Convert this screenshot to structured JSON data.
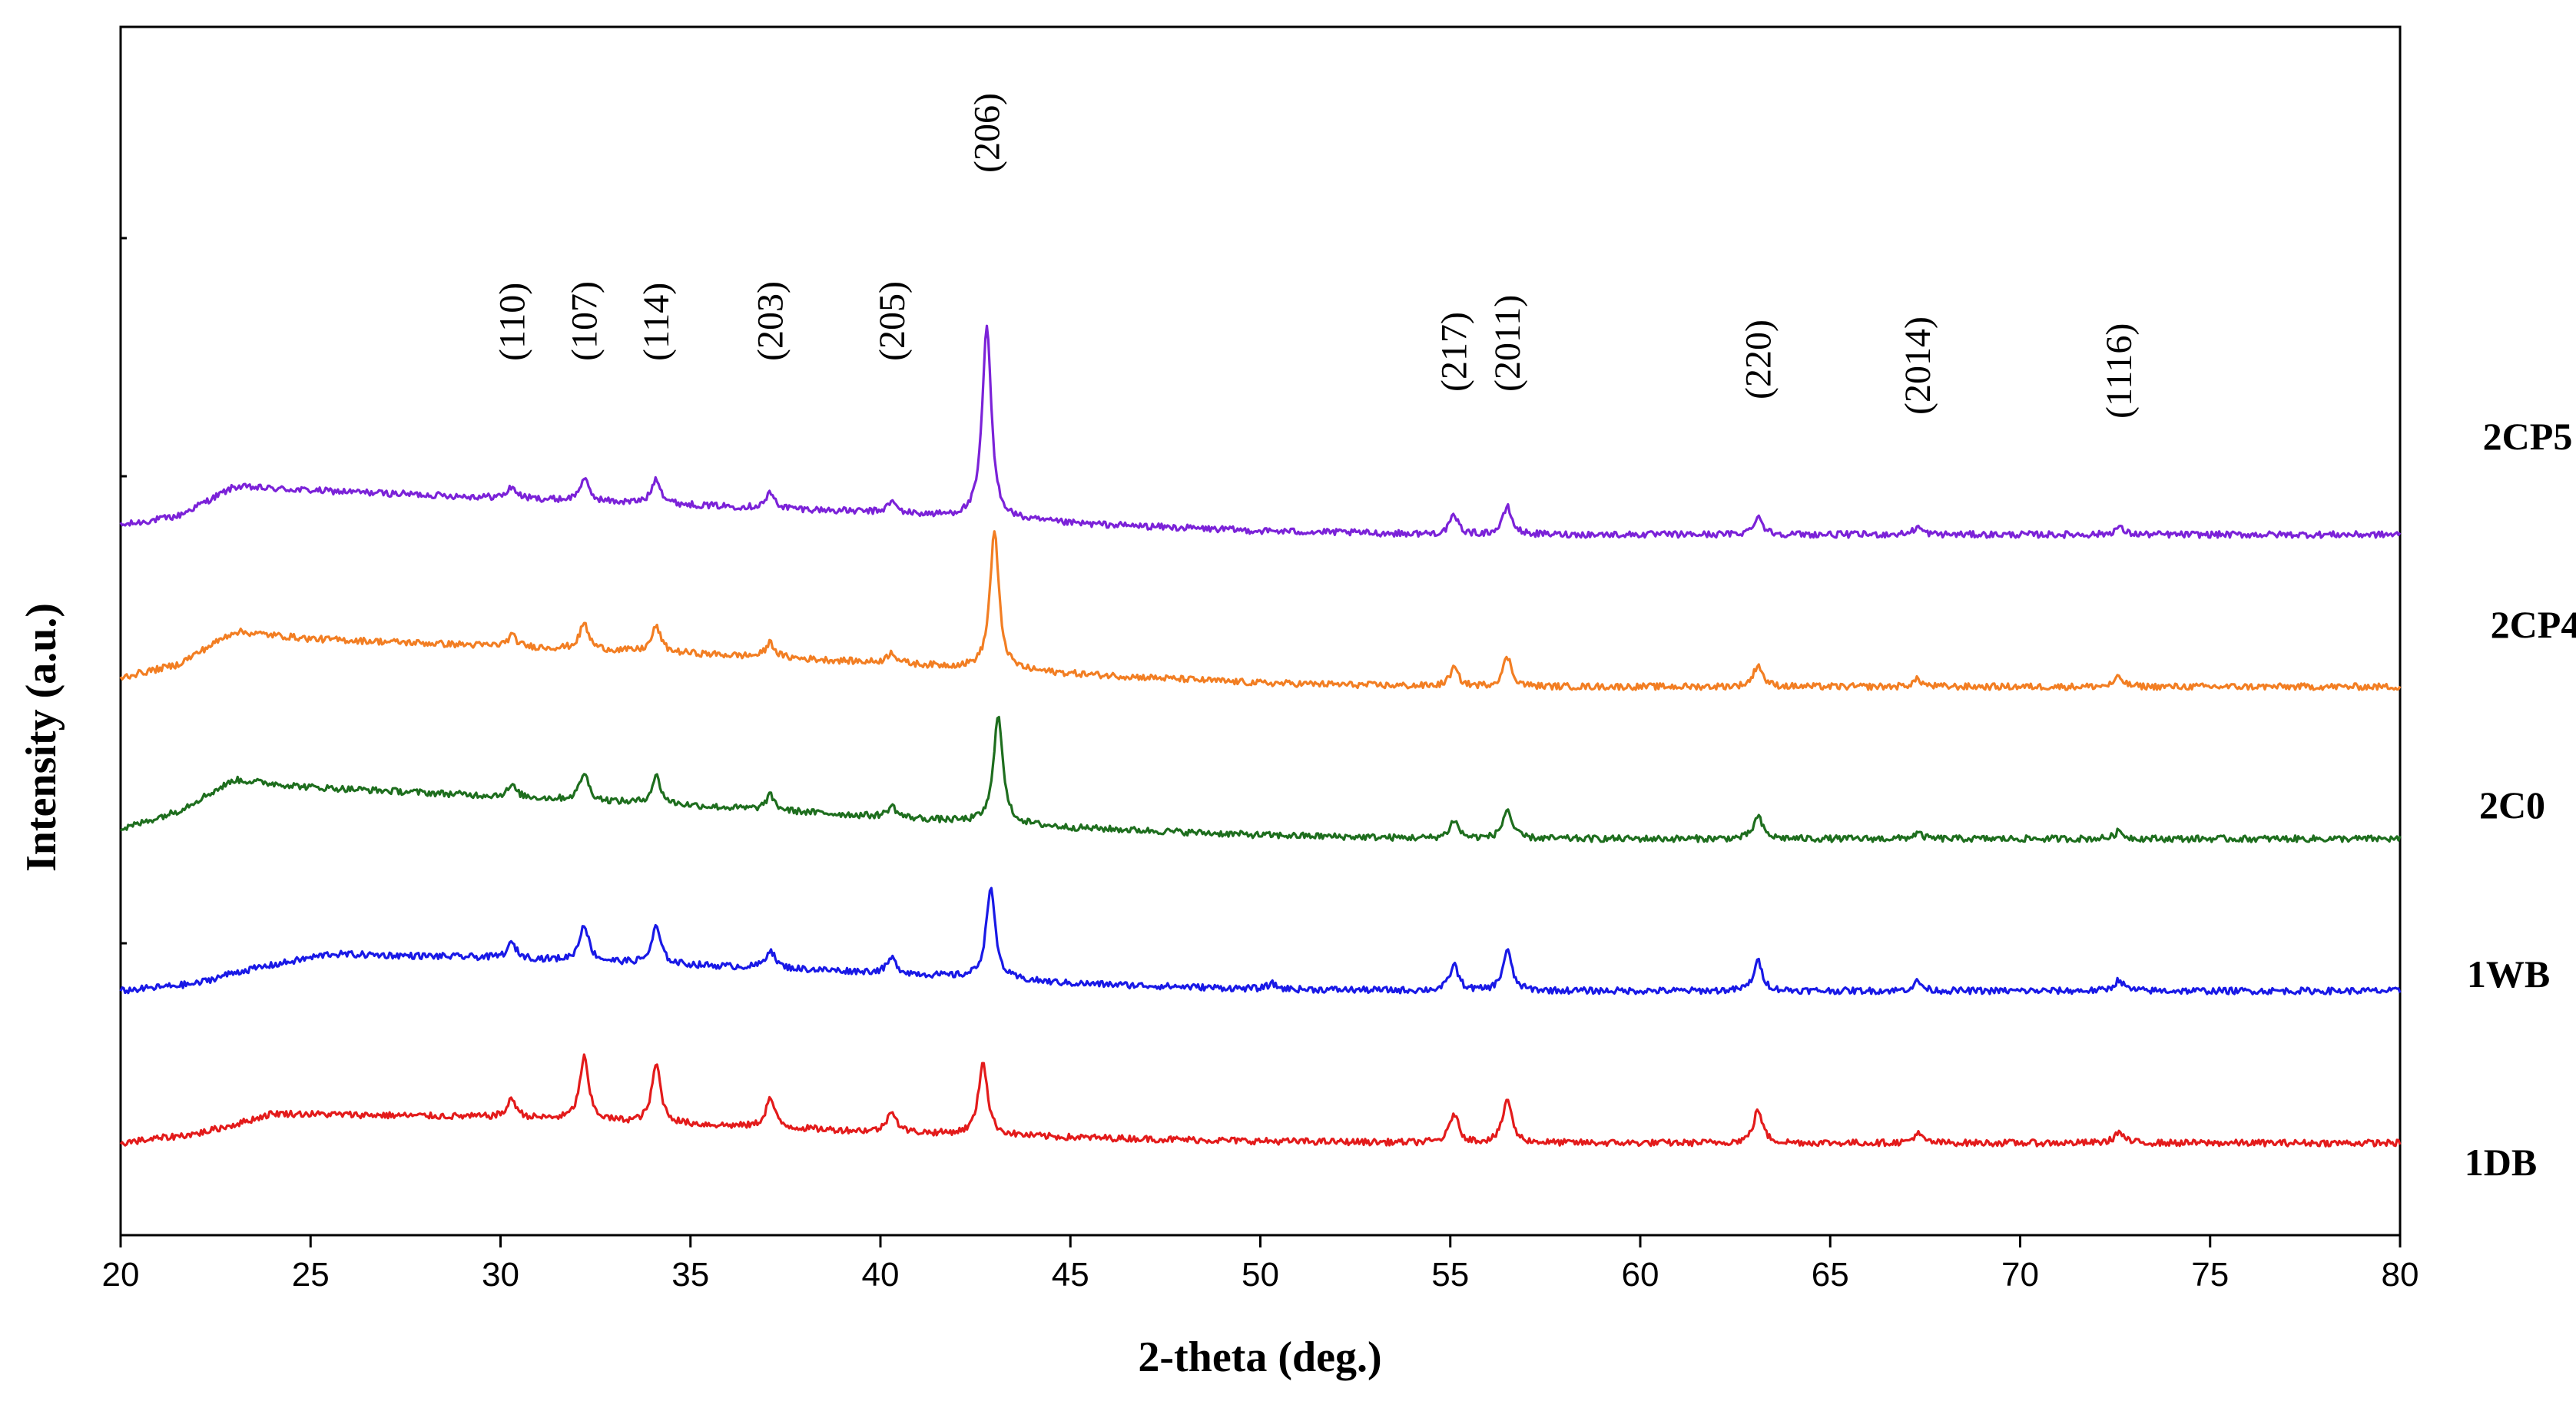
{
  "chart_data": {
    "type": "line",
    "title": "",
    "xlabel": "2-theta (deg.)",
    "ylabel": "Intensity (a.u.)",
    "xlim": [
      20,
      80
    ],
    "xticks": [
      20,
      25,
      30,
      35,
      40,
      45,
      50,
      55,
      60,
      65,
      70,
      75,
      80
    ],
    "grid": false,
    "legend": "right-side labels",
    "peaks": [
      {
        "label": "(110)",
        "x": 30.3
      },
      {
        "label": "(107)",
        "x": 32.2
      },
      {
        "label": "(114)",
        "x": 34.1
      },
      {
        "label": "(203)",
        "x": 37.1
      },
      {
        "label": "(205)",
        "x": 40.3
      },
      {
        "label": "(206)",
        "x": 42.8
      },
      {
        "label": "(217)",
        "x": 55.1
      },
      {
        "label": "(2011)",
        "x": 56.5
      },
      {
        "label": "(220)",
        "x": 63.1
      },
      {
        "label": "(2014)",
        "x": 67.3
      },
      {
        "label": "(1116)",
        "x": 72.6
      }
    ],
    "series": [
      {
        "name": "2CP5",
        "color": "#7B22D8",
        "offset": 4.0,
        "baseline": [
          [
            20,
            0.05
          ],
          [
            21.5,
            0.1
          ],
          [
            23,
            0.26
          ],
          [
            25,
            0.24
          ],
          [
            30,
            0.2
          ],
          [
            35,
            0.16
          ],
          [
            40,
            0.12
          ],
          [
            45,
            0.06
          ],
          [
            50,
            0.02
          ],
          [
            55,
            0.0
          ],
          [
            60,
            0.0
          ],
          [
            65,
            0.0
          ],
          [
            70,
            0.0
          ],
          [
            80,
            0.0
          ]
        ],
        "peaks": [
          [
            30.3,
            0.06
          ],
          [
            32.2,
            0.12
          ],
          [
            34.1,
            0.14
          ],
          [
            37.1,
            0.08
          ],
          [
            40.3,
            0.06
          ],
          [
            42.8,
            1.05
          ],
          [
            55.1,
            0.1
          ],
          [
            56.5,
            0.15
          ],
          [
            63.1,
            0.1
          ],
          [
            67.3,
            0.04
          ],
          [
            72.6,
            0.04
          ]
        ]
      },
      {
        "name": "2CP4",
        "color": "#F27E23",
        "offset": 3.0,
        "baseline": [
          [
            20,
            0.05
          ],
          [
            21.5,
            0.12
          ],
          [
            23,
            0.3
          ],
          [
            25,
            0.26
          ],
          [
            30,
            0.22
          ],
          [
            35,
            0.18
          ],
          [
            40,
            0.13
          ],
          [
            45,
            0.07
          ],
          [
            50,
            0.02
          ],
          [
            55,
            0.0
          ],
          [
            60,
            0.0
          ],
          [
            65,
            0.0
          ],
          [
            70,
            0.0
          ],
          [
            80,
            0.0
          ]
        ],
        "peaks": [
          [
            30.3,
            0.06
          ],
          [
            32.2,
            0.14
          ],
          [
            34.1,
            0.14
          ],
          [
            37.1,
            0.08
          ],
          [
            40.3,
            0.06
          ],
          [
            43.0,
            0.75
          ],
          [
            55.1,
            0.1
          ],
          [
            56.5,
            0.16
          ],
          [
            63.1,
            0.12
          ],
          [
            67.3,
            0.04
          ],
          [
            72.6,
            0.05
          ]
        ]
      },
      {
        "name": "2C0",
        "color": "#1E6E1E",
        "offset": 2.0,
        "baseline": [
          [
            20,
            0.05
          ],
          [
            21.5,
            0.15
          ],
          [
            23,
            0.32
          ],
          [
            25,
            0.28
          ],
          [
            30,
            0.23
          ],
          [
            35,
            0.18
          ],
          [
            40,
            0.12
          ],
          [
            45,
            0.06
          ],
          [
            50,
            0.02
          ],
          [
            55,
            0.0
          ],
          [
            60,
            0.0
          ],
          [
            65,
            0.0
          ],
          [
            70,
            0.0
          ],
          [
            80,
            0.0
          ]
        ],
        "peaks": [
          [
            30.3,
            0.06
          ],
          [
            32.2,
            0.15
          ],
          [
            34.1,
            0.15
          ],
          [
            37.1,
            0.08
          ],
          [
            40.3,
            0.06
          ],
          [
            43.1,
            0.6
          ],
          [
            55.1,
            0.1
          ],
          [
            56.5,
            0.16
          ],
          [
            63.1,
            0.12
          ],
          [
            67.3,
            0.03
          ],
          [
            72.6,
            0.04
          ]
        ]
      },
      {
        "name": "1WB",
        "color": "#1919E6",
        "offset": 1.0,
        "baseline": [
          [
            20,
            0.0
          ],
          [
            22,
            0.04
          ],
          [
            23,
            0.1
          ],
          [
            25.5,
            0.2
          ],
          [
            30,
            0.18
          ],
          [
            35,
            0.14
          ],
          [
            40,
            0.1
          ],
          [
            45,
            0.04
          ],
          [
            50,
            0.01
          ],
          [
            55,
            0.0
          ],
          [
            60,
            0.0
          ],
          [
            65,
            0.0
          ],
          [
            70,
            0.0
          ],
          [
            80,
            0.0
          ]
        ],
        "peaks": [
          [
            30.3,
            0.08
          ],
          [
            32.2,
            0.2
          ],
          [
            34.1,
            0.2
          ],
          [
            37.1,
            0.1
          ],
          [
            40.3,
            0.08
          ],
          [
            42.9,
            0.5
          ],
          [
            50.3,
            0.03
          ],
          [
            55.1,
            0.14
          ],
          [
            56.5,
            0.22
          ],
          [
            63.1,
            0.16
          ],
          [
            67.3,
            0.05
          ],
          [
            72.6,
            0.06
          ]
        ]
      },
      {
        "name": "1DB",
        "color": "#E31B1B",
        "offset": 0.0,
        "baseline": [
          [
            20,
            0.0
          ],
          [
            22,
            0.05
          ],
          [
            23,
            0.1
          ],
          [
            24,
            0.16
          ],
          [
            30,
            0.14
          ],
          [
            35,
            0.1
          ],
          [
            40,
            0.06
          ],
          [
            45,
            0.03
          ],
          [
            50,
            0.01
          ],
          [
            55,
            0.0
          ],
          [
            60,
            0.0
          ],
          [
            65,
            0.0
          ],
          [
            70,
            0.0
          ],
          [
            80,
            0.0
          ]
        ],
        "peaks": [
          [
            30.3,
            0.1
          ],
          [
            32.2,
            0.34
          ],
          [
            34.1,
            0.32
          ],
          [
            37.1,
            0.16
          ],
          [
            40.3,
            0.12
          ],
          [
            42.7,
            0.4
          ],
          [
            55.1,
            0.16
          ],
          [
            56.5,
            0.24
          ],
          [
            63.1,
            0.18
          ],
          [
            67.3,
            0.05
          ],
          [
            72.6,
            0.06
          ]
        ]
      }
    ]
  }
}
